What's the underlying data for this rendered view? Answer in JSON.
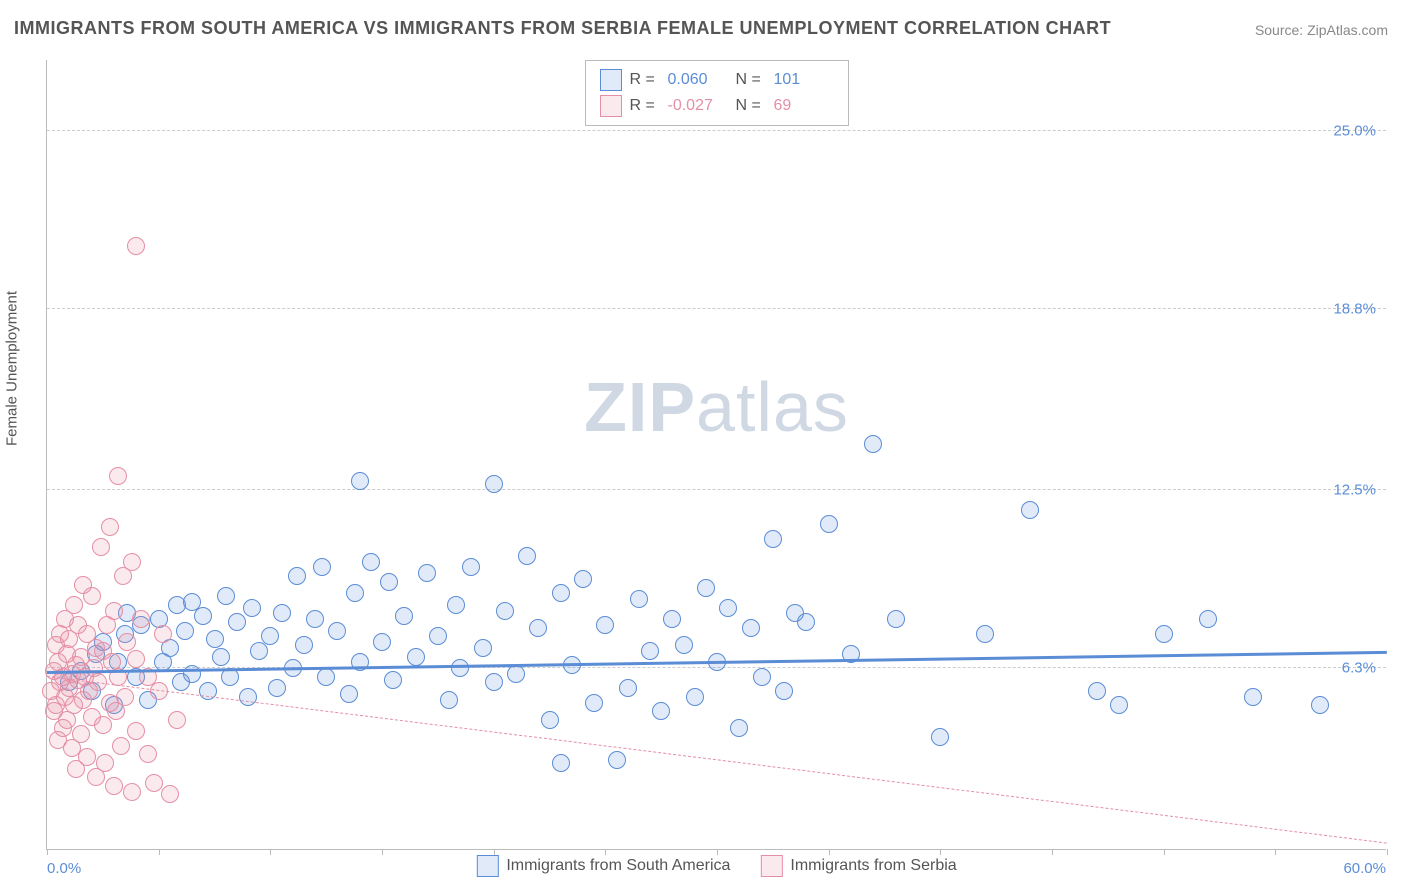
{
  "title": "IMMIGRANTS FROM SOUTH AMERICA VS IMMIGRANTS FROM SERBIA FEMALE UNEMPLOYMENT CORRELATION CHART",
  "source_label": "Source: ZipAtlas.com",
  "watermark_bold": "ZIP",
  "watermark_rest": "atlas",
  "chart": {
    "type": "scatter",
    "xlabel": "",
    "ylabel": "Female Unemployment",
    "xlim": [
      0,
      60
    ],
    "ylim": [
      0,
      27.5
    ],
    "x_tick_step": 5,
    "y_gridlines": [
      6.3,
      12.5,
      18.8,
      25.0
    ],
    "y_tick_labels": [
      "6.3%",
      "12.5%",
      "18.8%",
      "25.0%"
    ],
    "x_min_label": "0.0%",
    "x_max_label": "60.0%",
    "background_color": "#ffffff",
    "grid_color": "#cccccc",
    "axis_color": "#bbbbbb",
    "tick_label_color": "#5b8dd6",
    "axis_label_color": "#555555",
    "title_color": "#555555",
    "title_fontsize": 18,
    "label_fontsize": 15,
    "tick_fontsize": 15,
    "marker_radius": 9,
    "marker_border_width": 1.5,
    "marker_fill_opacity": 0.18,
    "series": [
      {
        "name": "Immigrants from South America",
        "color": "#5b8dd6",
        "fill": "rgba(91,141,214,0.18)",
        "R": "0.060",
        "N": "101",
        "trend": {
          "y_at_x0": 6.1,
          "y_at_xmax": 6.8,
          "width": 3,
          "dash": "solid"
        },
        "points": [
          [
            1.0,
            5.8
          ],
          [
            1.5,
            6.2
          ],
          [
            2.0,
            5.5
          ],
          [
            2.2,
            6.8
          ],
          [
            2.5,
            7.2
          ],
          [
            3.0,
            5.0
          ],
          [
            3.2,
            6.5
          ],
          [
            3.5,
            7.5
          ],
          [
            3.6,
            8.2
          ],
          [
            4.0,
            6.0
          ],
          [
            4.2,
            7.8
          ],
          [
            4.5,
            5.2
          ],
          [
            5.0,
            8.0
          ],
          [
            5.2,
            6.5
          ],
          [
            5.5,
            7.0
          ],
          [
            5.8,
            8.5
          ],
          [
            6.0,
            5.8
          ],
          [
            6.2,
            7.6
          ],
          [
            6.5,
            8.6
          ],
          [
            6.5,
            6.1
          ],
          [
            7.0,
            8.1
          ],
          [
            7.2,
            5.5
          ],
          [
            7.5,
            7.3
          ],
          [
            7.8,
            6.7
          ],
          [
            8.0,
            8.8
          ],
          [
            8.2,
            6.0
          ],
          [
            8.5,
            7.9
          ],
          [
            9.0,
            5.3
          ],
          [
            9.2,
            8.4
          ],
          [
            9.5,
            6.9
          ],
          [
            10.0,
            7.4
          ],
          [
            10.3,
            5.6
          ],
          [
            10.5,
            8.2
          ],
          [
            11.0,
            6.3
          ],
          [
            11.2,
            9.5
          ],
          [
            11.5,
            7.1
          ],
          [
            12.0,
            8.0
          ],
          [
            12.3,
            9.8
          ],
          [
            12.5,
            6.0
          ],
          [
            13.0,
            7.6
          ],
          [
            13.5,
            5.4
          ],
          [
            13.8,
            8.9
          ],
          [
            14.0,
            12.8
          ],
          [
            14.0,
            6.5
          ],
          [
            14.5,
            10.0
          ],
          [
            15.0,
            7.2
          ],
          [
            15.3,
            9.3
          ],
          [
            15.5,
            5.9
          ],
          [
            16.0,
            8.1
          ],
          [
            16.5,
            6.7
          ],
          [
            17.0,
            9.6
          ],
          [
            17.5,
            7.4
          ],
          [
            18.0,
            5.2
          ],
          [
            18.3,
            8.5
          ],
          [
            18.5,
            6.3
          ],
          [
            19.0,
            9.8
          ],
          [
            19.5,
            7.0
          ],
          [
            20.0,
            12.7
          ],
          [
            20.0,
            5.8
          ],
          [
            20.5,
            8.3
          ],
          [
            21.0,
            6.1
          ],
          [
            21.5,
            10.2
          ],
          [
            22.0,
            7.7
          ],
          [
            22.5,
            4.5
          ],
          [
            23.0,
            8.9
          ],
          [
            23.0,
            3.0
          ],
          [
            23.5,
            6.4
          ],
          [
            24.0,
            9.4
          ],
          [
            24.5,
            5.1
          ],
          [
            25.0,
            7.8
          ],
          [
            25.5,
            3.1
          ],
          [
            26.0,
            5.6
          ],
          [
            26.5,
            8.7
          ],
          [
            27.0,
            6.9
          ],
          [
            27.5,
            4.8
          ],
          [
            28.0,
            8.0
          ],
          [
            28.5,
            7.1
          ],
          [
            29.0,
            5.3
          ],
          [
            29.5,
            9.1
          ],
          [
            30.0,
            6.5
          ],
          [
            30.5,
            8.4
          ],
          [
            31.0,
            4.2
          ],
          [
            31.5,
            7.7
          ],
          [
            32.0,
            6.0
          ],
          [
            32.5,
            10.8
          ],
          [
            33.0,
            5.5
          ],
          [
            33.5,
            8.2
          ],
          [
            34.0,
            7.9
          ],
          [
            35.0,
            11.3
          ],
          [
            36.0,
            6.8
          ],
          [
            37.0,
            14.1
          ],
          [
            38.0,
            8.0
          ],
          [
            40.0,
            3.9
          ],
          [
            42.0,
            7.5
          ],
          [
            44.0,
            11.8
          ],
          [
            47.0,
            5.5
          ],
          [
            48.0,
            5.0
          ],
          [
            50.0,
            7.5
          ],
          [
            52.0,
            8.0
          ],
          [
            54.0,
            5.3
          ],
          [
            57.0,
            5.0
          ]
        ]
      },
      {
        "name": "Immigrants from Serbia",
        "color": "#e58fa6",
        "fill": "rgba(229,143,166,0.20)",
        "R": "-0.027",
        "N": "69",
        "trend": {
          "y_at_x0": 6.0,
          "y_at_xmax": 0.2,
          "width": 1,
          "dash": "dashed"
        },
        "points": [
          [
            0.2,
            5.5
          ],
          [
            0.3,
            6.2
          ],
          [
            0.3,
            4.8
          ],
          [
            0.4,
            7.1
          ],
          [
            0.4,
            5.0
          ],
          [
            0.5,
            6.5
          ],
          [
            0.5,
            3.8
          ],
          [
            0.6,
            5.8
          ],
          [
            0.6,
            7.5
          ],
          [
            0.7,
            4.2
          ],
          [
            0.7,
            6.0
          ],
          [
            0.8,
            5.3
          ],
          [
            0.8,
            8.0
          ],
          [
            0.9,
            6.8
          ],
          [
            0.9,
            4.5
          ],
          [
            1.0,
            5.6
          ],
          [
            1.0,
            7.3
          ],
          [
            1.1,
            3.5
          ],
          [
            1.1,
            6.1
          ],
          [
            1.2,
            5.0
          ],
          [
            1.2,
            8.5
          ],
          [
            1.3,
            6.4
          ],
          [
            1.3,
            2.8
          ],
          [
            1.4,
            5.9
          ],
          [
            1.4,
            7.8
          ],
          [
            1.5,
            4.0
          ],
          [
            1.5,
            6.7
          ],
          [
            1.6,
            5.2
          ],
          [
            1.6,
            9.2
          ],
          [
            1.7,
            6.0
          ],
          [
            1.8,
            3.2
          ],
          [
            1.8,
            7.5
          ],
          [
            1.9,
            5.5
          ],
          [
            2.0,
            8.8
          ],
          [
            2.0,
            4.6
          ],
          [
            2.1,
            6.3
          ],
          [
            2.2,
            2.5
          ],
          [
            2.2,
            7.0
          ],
          [
            2.3,
            5.8
          ],
          [
            2.4,
            10.5
          ],
          [
            2.5,
            4.3
          ],
          [
            2.5,
            6.9
          ],
          [
            2.6,
            3.0
          ],
          [
            2.7,
            7.8
          ],
          [
            2.8,
            5.1
          ],
          [
            2.8,
            11.2
          ],
          [
            2.9,
            6.5
          ],
          [
            3.0,
            2.2
          ],
          [
            3.0,
            8.3
          ],
          [
            3.1,
            4.8
          ],
          [
            3.2,
            13.0
          ],
          [
            3.2,
            6.0
          ],
          [
            3.3,
            3.6
          ],
          [
            3.4,
            9.5
          ],
          [
            3.5,
            5.3
          ],
          [
            3.6,
            7.2
          ],
          [
            3.8,
            2.0
          ],
          [
            3.8,
            10.0
          ],
          [
            4.0,
            6.6
          ],
          [
            4.0,
            4.1
          ],
          [
            4.0,
            21.0
          ],
          [
            4.2,
            8.0
          ],
          [
            4.5,
            3.3
          ],
          [
            4.5,
            6.0
          ],
          [
            4.8,
            2.3
          ],
          [
            5.0,
            5.5
          ],
          [
            5.2,
            7.5
          ],
          [
            5.5,
            1.9
          ],
          [
            5.8,
            4.5
          ]
        ]
      }
    ]
  },
  "legend_top": {
    "r_label": "R =",
    "n_label": "N ="
  },
  "legend_bottom_labels": [
    "Immigrants from South America",
    "Immigrants from Serbia"
  ]
}
